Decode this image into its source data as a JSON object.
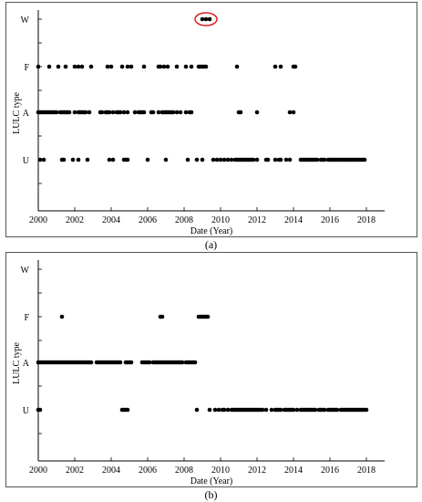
{
  "figure": {
    "panels": [
      {
        "caption": "(a)"
      },
      {
        "caption": "(b)"
      }
    ]
  },
  "chart_data": [
    {
      "type": "scatter",
      "title": "",
      "xlabel": "Date (Year)",
      "ylabel": "LULC type",
      "xlim": [
        2000,
        2019
      ],
      "xticks": [
        "2000",
        "2002",
        "2004",
        "2006",
        "2008",
        "2010",
        "2012",
        "2014",
        "2016",
        "2018"
      ],
      "yticks": [
        "W",
        "F",
        "A",
        "U"
      ],
      "grid": false,
      "marker_color": "#000000",
      "highlight_color": "#e02020",
      "highlight": {
        "series": "W",
        "x": [
          2009.0,
          2009.2,
          2009.4
        ]
      },
      "series": [
        {
          "y": "W",
          "x": [
            2009.0,
            2009.2,
            2009.4
          ]
        },
        {
          "y": "F",
          "x": [
            2000.0,
            2000.6,
            2001.1,
            2001.5,
            2002.0,
            2002.2,
            2002.4,
            2002.9,
            2003.8,
            2004.0,
            2004.6,
            2004.9,
            2005.1,
            2005.8,
            2006.6,
            2006.7,
            2006.9,
            2007.1,
            2007.6,
            2008.1,
            2008.4,
            2008.8,
            2008.9,
            2009.0,
            2009.1,
            2009.2,
            2010.9,
            2013.0,
            2013.3,
            2014.0,
            2014.1
          ]
        },
        {
          "y": "A",
          "x": [
            2000.0,
            2000.1,
            2000.2,
            2000.3,
            2000.4,
            2000.5,
            2000.6,
            2000.7,
            2000.8,
            2000.9,
            2001.0,
            2001.2,
            2001.3,
            2001.4,
            2001.5,
            2001.6,
            2001.7,
            2002.0,
            2002.2,
            2002.3,
            2002.4,
            2002.5,
            2002.6,
            2002.8,
            2003.4,
            2003.5,
            2003.7,
            2003.8,
            2003.9,
            2004.1,
            2004.3,
            2004.4,
            2004.5,
            2004.7,
            2004.9,
            2005.3,
            2005.5,
            2005.6,
            2005.7,
            2005.8,
            2006.2,
            2006.3,
            2006.6,
            2006.8,
            2006.9,
            2007.0,
            2007.1,
            2007.2,
            2007.3,
            2007.4,
            2007.6,
            2007.8,
            2008.1,
            2008.3,
            2008.4,
            2011.0,
            2011.1,
            2012.0,
            2013.8,
            2014.0
          ]
        },
        {
          "y": "U",
          "x": [
            2000.1,
            2000.3,
            2001.3,
            2001.4,
            2001.9,
            2002.2,
            2002.7,
            2003.9,
            2004.1,
            2004.7,
            2004.8,
            2004.9,
            2006.0,
            2007.0,
            2008.2,
            2008.7,
            2009.0,
            2009.6,
            2009.8,
            2010.0,
            2010.2,
            2010.4,
            2010.6,
            2010.8,
            2010.9,
            2011.0,
            2011.1,
            2011.2,
            2011.3,
            2011.4,
            2011.5,
            2011.6,
            2011.7,
            2011.8,
            2012.0,
            2012.5,
            2012.6,
            2013.0,
            2013.2,
            2013.3,
            2013.6,
            2013.8,
            2014.4,
            2014.5,
            2014.6,
            2014.7,
            2014.8,
            2014.9,
            2015.0,
            2015.1,
            2015.2,
            2015.3,
            2015.5,
            2015.6,
            2015.7,
            2015.9,
            2016.0,
            2016.1,
            2016.2,
            2016.3,
            2016.4,
            2016.5,
            2016.6,
            2016.7,
            2016.8,
            2016.9,
            2017.0,
            2017.1,
            2017.2,
            2017.3,
            2017.4,
            2017.5,
            2017.6,
            2017.7,
            2017.8,
            2017.9
          ]
        }
      ]
    },
    {
      "type": "scatter",
      "title": "",
      "xlabel": "Date (Year)",
      "ylabel": "LULC type",
      "xlim": [
        2000,
        2019
      ],
      "xticks": [
        "2000",
        "2002",
        "2004",
        "2006",
        "2008",
        "2010",
        "2012",
        "2014",
        "2016",
        "2018"
      ],
      "yticks": [
        "W",
        "F",
        "A",
        "U"
      ],
      "grid": false,
      "marker_color": "#000000",
      "series": [
        {
          "y": "W",
          "x": []
        },
        {
          "y": "F",
          "x": [
            2001.3,
            2006.7,
            2006.8,
            2008.8,
            2008.9,
            2009.0,
            2009.1,
            2009.2,
            2009.3
          ]
        },
        {
          "y": "A",
          "x": [
            2000.0,
            2000.1,
            2000.2,
            2000.3,
            2000.4,
            2000.5,
            2000.6,
            2000.7,
            2000.8,
            2000.9,
            2001.0,
            2001.1,
            2001.2,
            2001.3,
            2001.4,
            2001.5,
            2001.6,
            2001.7,
            2001.8,
            2001.9,
            2002.0,
            2002.1,
            2002.2,
            2002.3,
            2002.4,
            2002.5,
            2002.6,
            2002.7,
            2002.8,
            2002.9,
            2003.2,
            2003.3,
            2003.4,
            2003.5,
            2003.6,
            2003.7,
            2003.8,
            2003.9,
            2004.0,
            2004.1,
            2004.2,
            2004.3,
            2004.4,
            2004.5,
            2004.8,
            2004.9,
            2005.0,
            2005.1,
            2005.7,
            2005.8,
            2005.9,
            2006.0,
            2006.1,
            2006.3,
            2006.4,
            2006.5,
            2006.6,
            2006.7,
            2006.8,
            2006.9,
            2007.0,
            2007.1,
            2007.2,
            2007.3,
            2007.4,
            2007.5,
            2007.6,
            2007.7,
            2007.8,
            2007.9,
            2008.1,
            2008.2,
            2008.3,
            2008.4,
            2008.5,
            2008.6
          ]
        },
        {
          "y": "U",
          "x": [
            2000.0,
            2000.1,
            2004.6,
            2004.7,
            2004.8,
            2004.9,
            2008.7,
            2009.4,
            2009.7,
            2009.9,
            2010.1,
            2010.2,
            2010.4,
            2010.6,
            2010.7,
            2010.8,
            2010.9,
            2011.0,
            2011.1,
            2011.2,
            2011.3,
            2011.4,
            2011.5,
            2011.6,
            2011.7,
            2011.8,
            2011.9,
            2012.0,
            2012.1,
            2012.2,
            2012.3,
            2012.5,
            2012.8,
            2013.0,
            2013.1,
            2013.2,
            2013.3,
            2013.5,
            2013.6,
            2013.7,
            2013.8,
            2013.9,
            2014.0,
            2014.2,
            2014.4,
            2014.5,
            2014.6,
            2014.7,
            2014.8,
            2014.9,
            2015.0,
            2015.1,
            2015.2,
            2015.4,
            2015.5,
            2015.6,
            2015.7,
            2015.9,
            2016.0,
            2016.1,
            2016.2,
            2016.3,
            2016.4,
            2016.6,
            2016.7,
            2016.8,
            2016.9,
            2017.0,
            2017.1,
            2017.2,
            2017.3,
            2017.4,
            2017.5,
            2017.6,
            2017.7,
            2017.8,
            2017.9,
            2018.0
          ]
        }
      ]
    }
  ]
}
